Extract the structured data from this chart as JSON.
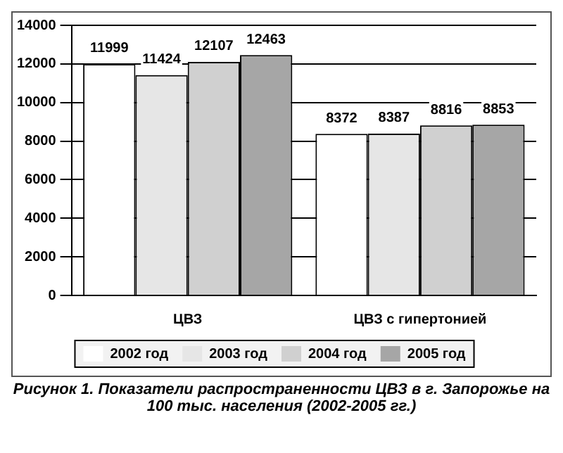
{
  "chart_data": {
    "type": "bar",
    "categories": [
      "ЦВЗ",
      "ЦВЗ с гипертонией"
    ],
    "series": [
      {
        "name": "2002 год",
        "color": "#ffffff",
        "values": [
          11999,
          8372
        ]
      },
      {
        "name": "2003 год",
        "color": "#e6e6e6",
        "values": [
          11424,
          8387
        ]
      },
      {
        "name": "2004 год",
        "color": "#d0d0d0",
        "values": [
          12107,
          8816
        ]
      },
      {
        "name": "2005 год",
        "color": "#a6a6a6",
        "values": [
          12463,
          8853
        ]
      }
    ],
    "ylim": [
      0,
      14000
    ],
    "yticks": [
      0,
      2000,
      4000,
      6000,
      8000,
      10000,
      12000,
      14000
    ],
    "grid": "y",
    "legend": "bottom",
    "data_labels": true,
    "annotations": [
      "Рисунок 1. Показатели распространенности ЦВЗ в г. Запорожье на 100 тыс. населения (2002-2005 гг.)"
    ]
  }
}
